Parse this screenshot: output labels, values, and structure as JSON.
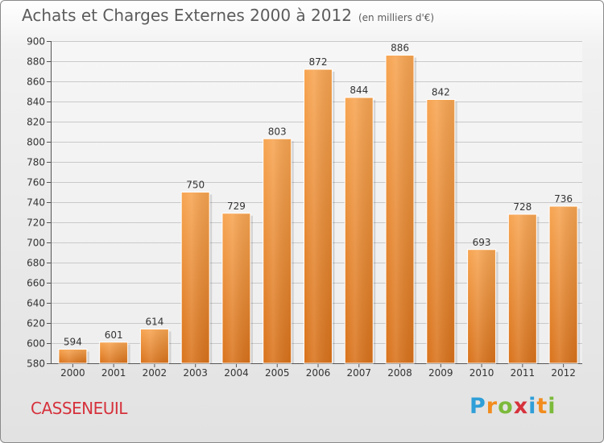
{
  "header": {
    "title": "Achats et Charges Externes 2000 à 2012",
    "subtitle": "(en milliers d'€)"
  },
  "footer": {
    "city": "CASSENEUIL",
    "logo": [
      "P",
      "r",
      "o",
      "x",
      "i",
      "t",
      "i"
    ],
    "logo_colors": [
      "#2f9fd8",
      "#f28c1e",
      "#7cba3b",
      "#d6323c",
      "#2f9fd8",
      "#f28c1e",
      "#7cba3b"
    ]
  },
  "colors": {
    "bar_top": "#f7a552",
    "bar_bottom": "#d9731c",
    "city": "#d6323c"
  },
  "chart_data": {
    "type": "bar",
    "title": "Achats et Charges Externes 2000 à 2012",
    "subtitle": "(en milliers d'€)",
    "categories": [
      "2000",
      "2001",
      "2002",
      "2003",
      "2004",
      "2005",
      "2006",
      "2007",
      "2008",
      "2009",
      "2010",
      "2011",
      "2012"
    ],
    "values": [
      594,
      601,
      614,
      750,
      729,
      803,
      872,
      844,
      886,
      842,
      693,
      728,
      736
    ],
    "ylim": [
      580,
      900
    ],
    "yticks": [
      580,
      600,
      620,
      640,
      660,
      680,
      700,
      720,
      740,
      760,
      780,
      800,
      820,
      840,
      860,
      880,
      900
    ],
    "grid": true,
    "xlabel": "",
    "ylabel": ""
  }
}
